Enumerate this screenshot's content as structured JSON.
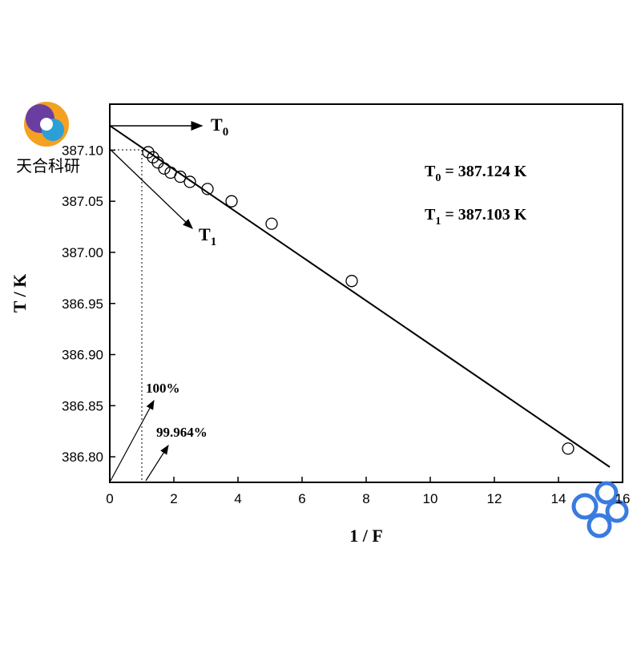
{
  "chart_data": {
    "type": "scatter",
    "xlabel": "1 / F",
    "ylabel": "T / K",
    "x": [
      1.2,
      1.35,
      1.5,
      1.7,
      1.9,
      2.2,
      2.5,
      3.05,
      3.8,
      5.05,
      7.55,
      14.3
    ],
    "values": [
      387.098,
      387.093,
      387.088,
      387.082,
      387.078,
      387.074,
      387.069,
      387.062,
      387.05,
      387.028,
      386.972,
      386.808
    ],
    "fit_line": {
      "x": [
        0,
        15.6
      ],
      "values": [
        387.124,
        386.79
      ]
    },
    "xlim": [
      0,
      16
    ],
    "ylim": [
      386.775,
      387.145
    ],
    "xticks": [
      0,
      2,
      4,
      6,
      8,
      10,
      12,
      14,
      16
    ],
    "yticks": [
      {
        "value": 387.1,
        "label": "387.10"
      },
      387.05,
      {
        "value": 387,
        "label": "387.00"
      },
      386.95,
      {
        "value": 386.9,
        "label": "386.90"
      },
      386.85,
      {
        "value": 386.8,
        "label": "386.80"
      }
    ],
    "annotations": {
      "t0_arrow": {
        "main": "T",
        "sub": "0"
      },
      "t1_arrow": {
        "main": "T",
        "sub": "1"
      },
      "t0_value": {
        "main": "T",
        "sub": "0",
        "rest": " = 387.124 K"
      },
      "t1_value": {
        "main": "T",
        "sub": "1",
        "rest": " = 387.103 K"
      },
      "pct_full": "100%",
      "pct_part": "99.964%"
    },
    "watermark": "天合科研"
  }
}
